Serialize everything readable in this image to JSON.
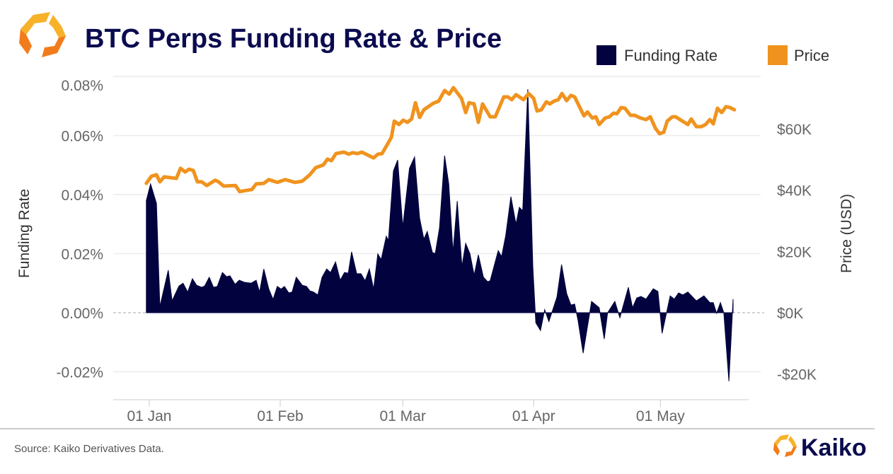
{
  "header": {
    "title": "BTC Perps Funding Rate & Price"
  },
  "footer": {
    "source": "Source: Kaiko Derivatives Data.",
    "brand": "Kaiko"
  },
  "colors": {
    "funding": "#02023f",
    "price": "#f0931e",
    "title": "#0b0b4f"
  },
  "chart_data": {
    "type": "area+line",
    "title": "BTC Perps Funding Rate & Price",
    "x_unit": "days since 31 Dec",
    "x_ticks": [
      {
        "label": "01 Jan",
        "day": 1
      },
      {
        "label": "01 Feb",
        "day": 32
      },
      {
        "label": "01 Mar",
        "day": 61
      },
      {
        "label": "01 Apr",
        "day": 92
      },
      {
        "label": "01 May",
        "day": 122
      }
    ],
    "y_left": {
      "label": "Funding Rate",
      "range": [
        -0.02,
        0.08
      ],
      "ticks": [
        {
          "label": "0.08%",
          "value": 0.08
        },
        {
          "label": "0.06%",
          "value": 0.06
        },
        {
          "label": "0.04%",
          "value": 0.04
        },
        {
          "label": "0.02%",
          "value": 0.02
        },
        {
          "label": "0.00%",
          "value": 0
        },
        {
          "label": "-0.02%",
          "value": -0.02
        }
      ]
    },
    "y_right": {
      "label": "Price (USD)",
      "unit": "thousand USD",
      "ticks": [
        {
          "label": "$60K",
          "value": 60
        },
        {
          "label": "$40K",
          "value": 40
        },
        {
          "label": "$20K",
          "value": 20
        },
        {
          "label": "$0K",
          "value": 0
        },
        {
          "label": "-$20K",
          "value": -20
        }
      ]
    },
    "legend": {
      "position": "top-right",
      "items": [
        {
          "label": "Funding Rate",
          "type": "area"
        },
        {
          "label": "Price",
          "type": "line"
        }
      ]
    },
    "grid": true,
    "series": [
      {
        "name": "Funding Rate",
        "axis": "left",
        "points": [
          [
            0.3,
            0.038
          ],
          [
            1.3,
            0.0436
          ],
          [
            2.7,
            0.037
          ],
          [
            3.5,
            0.002
          ],
          [
            5.5,
            0.0144
          ],
          [
            6.4,
            0.004
          ],
          [
            8.0,
            0.009
          ],
          [
            9.0,
            0.01
          ],
          [
            10.1,
            0.007
          ],
          [
            11.2,
            0.0115
          ],
          [
            12.2,
            0.0093
          ],
          [
            13.4,
            0.0086
          ],
          [
            14.1,
            0.009
          ],
          [
            15.2,
            0.012
          ],
          [
            16.2,
            0.0086
          ],
          [
            17.1,
            0.0089
          ],
          [
            18.3,
            0.0136
          ],
          [
            19.3,
            0.0122
          ],
          [
            20.1,
            0.0125
          ],
          [
            21.3,
            0.0096
          ],
          [
            22.3,
            0.011
          ],
          [
            23.5,
            0.0103
          ],
          [
            25.1,
            0.01
          ],
          [
            26.3,
            0.011
          ],
          [
            27.1,
            0.007
          ],
          [
            28.1,
            0.0148
          ],
          [
            29.3,
            0.008
          ],
          [
            30.3,
            0.0045
          ],
          [
            31.3,
            0.0089
          ],
          [
            32.2,
            0.008
          ],
          [
            33.0,
            0.0089
          ],
          [
            34.0,
            0.0067
          ],
          [
            34.8,
            0.007
          ],
          [
            35.8,
            0.012
          ],
          [
            37.2,
            0.0093
          ],
          [
            38.2,
            0.0089
          ],
          [
            39.0,
            0.0074
          ],
          [
            39.9,
            0.007
          ],
          [
            40.9,
            0.006
          ],
          [
            41.9,
            0.012
          ],
          [
            43.0,
            0.0148
          ],
          [
            43.9,
            0.0136
          ],
          [
            45.1,
            0.0172
          ],
          [
            46.2,
            0.011
          ],
          [
            47.2,
            0.0136
          ],
          [
            48.1,
            0.0134
          ],
          [
            48.9,
            0.0206
          ],
          [
            50.1,
            0.0132
          ],
          [
            51.1,
            0.0132
          ],
          [
            52.1,
            0.0108
          ],
          [
            53.1,
            0.0148
          ],
          [
            54.1,
            0.008
          ],
          [
            55.1,
            0.0199
          ],
          [
            55.9,
            0.018
          ],
          [
            57.1,
            0.0259
          ],
          [
            57.6,
            0.0244
          ],
          [
            58.8,
            0.048
          ],
          [
            59.8,
            0.0517
          ],
          [
            61.0,
            0.029
          ],
          [
            62.6,
            0.0489
          ],
          [
            63.8,
            0.0527
          ],
          [
            65.0,
            0.032
          ],
          [
            66.0,
            0.0249
          ],
          [
            66.8,
            0.0275
          ],
          [
            68.0,
            0.0204
          ],
          [
            68.7,
            0.02
          ],
          [
            69.7,
            0.0287
          ],
          [
            70.9,
            0.0532
          ],
          [
            71.9,
            0.0436
          ],
          [
            72.9,
            0.0204
          ],
          [
            73.9,
            0.0378
          ],
          [
            75.0,
            0.0156
          ],
          [
            75.9,
            0.0235
          ],
          [
            76.9,
            0.02
          ],
          [
            77.9,
            0.0127
          ],
          [
            78.9,
            0.0196
          ],
          [
            80.1,
            0.012
          ],
          [
            81.1,
            0.0105
          ],
          [
            81.7,
            0.0108
          ],
          [
            83.6,
            0.021
          ],
          [
            84.4,
            0.019
          ],
          [
            85.4,
            0.0263
          ],
          [
            86.6,
            0.0393
          ],
          [
            87.8,
            0.03
          ],
          [
            88.6,
            0.0357
          ],
          [
            89.4,
            0.0345
          ],
          [
            90.6,
            0.0757
          ],
          [
            91.8,
            0.0156
          ],
          [
            92.5,
            -0.0034
          ],
          [
            93.6,
            -0.006
          ],
          [
            94.6,
            0.001
          ],
          [
            95.6,
            -0.003
          ],
          [
            97.5,
            0.0053
          ],
          [
            98.6,
            0.0163
          ],
          [
            99.8,
            0.0065
          ],
          [
            100.8,
            0.0026
          ],
          [
            101.7,
            0.0029
          ],
          [
            102.5,
            -0.0026
          ],
          [
            103.7,
            -0.0137
          ],
          [
            105.7,
            0.0038
          ],
          [
            107.5,
            0.0017
          ],
          [
            108.7,
            -0.0089
          ],
          [
            109.5,
            0
          ],
          [
            111.2,
            0.0038
          ],
          [
            112.4,
            -0.0017
          ],
          [
            114.4,
            0.0086
          ],
          [
            115.4,
            0.0017
          ],
          [
            116.4,
            0.005
          ],
          [
            117.4,
            0.0055
          ],
          [
            118.6,
            0.0046
          ],
          [
            120.3,
            0.0081
          ],
          [
            121.4,
            0.0072
          ],
          [
            122.4,
            -0.007
          ],
          [
            124.3,
            0.0057
          ],
          [
            125.3,
            0.0046
          ],
          [
            126.3,
            0.0067
          ],
          [
            127.3,
            0.006
          ],
          [
            128.5,
            0.007
          ],
          [
            130.5,
            0.004
          ],
          [
            132.3,
            0.0057
          ],
          [
            133.7,
            0.0034
          ],
          [
            134.5,
            0.0034
          ],
          [
            135.3,
            -0.0002
          ],
          [
            136.2,
            0.0034
          ],
          [
            137.0,
            0
          ],
          [
            138.2,
            -0.0232
          ],
          [
            139.2,
            0.0046
          ]
        ]
      },
      {
        "name": "Price",
        "axis": "right",
        "points": [
          [
            0.3,
            42.2
          ],
          [
            1.5,
            44.5
          ],
          [
            2.7,
            45.0
          ],
          [
            3.5,
            42.7
          ],
          [
            4.5,
            44.3
          ],
          [
            7.4,
            43.8
          ],
          [
            8.4,
            47.1
          ],
          [
            9.5,
            45.9
          ],
          [
            10.4,
            46.8
          ],
          [
            11.4,
            46.4
          ],
          [
            12.4,
            42.7
          ],
          [
            13.4,
            42.7
          ],
          [
            14.6,
            41.5
          ],
          [
            16.6,
            43.2
          ],
          [
            17.4,
            42.7
          ],
          [
            18.6,
            41.3
          ],
          [
            21.4,
            41.5
          ],
          [
            22.4,
            39.5
          ],
          [
            25.3,
            40.2
          ],
          [
            26.3,
            42.0
          ],
          [
            28.1,
            42.2
          ],
          [
            29.3,
            43.4
          ],
          [
            31.3,
            42.5
          ],
          [
            33.2,
            43.4
          ],
          [
            35.5,
            42.5
          ],
          [
            37.2,
            42.9
          ],
          [
            39.0,
            45.0
          ],
          [
            40.4,
            47.3
          ],
          [
            42.2,
            48.2
          ],
          [
            43.2,
            50.1
          ],
          [
            44.1,
            49.6
          ],
          [
            45.2,
            51.9
          ],
          [
            47.1,
            52.4
          ],
          [
            48.2,
            51.7
          ],
          [
            49.1,
            52.2
          ],
          [
            50.3,
            51.9
          ],
          [
            51.3,
            52.4
          ],
          [
            54.1,
            50.5
          ],
          [
            55.1,
            51.7
          ],
          [
            56.1,
            51.9
          ],
          [
            58.3,
            57.2
          ],
          [
            59.0,
            62.5
          ],
          [
            60.1,
            61.4
          ],
          [
            61.1,
            62.8
          ],
          [
            62.1,
            62.1
          ],
          [
            63.1,
            63.2
          ],
          [
            64.0,
            68.5
          ],
          [
            65.0,
            63.7
          ],
          [
            66.0,
            66.2
          ],
          [
            68.2,
            68.3
          ],
          [
            69.5,
            69.0
          ],
          [
            70.9,
            72.5
          ],
          [
            72.0,
            71.3
          ],
          [
            73.0,
            73.4
          ],
          [
            74.9,
            69.9
          ],
          [
            75.9,
            65.3
          ],
          [
            76.7,
            68.5
          ],
          [
            77.9,
            68.1
          ],
          [
            78.9,
            62.1
          ],
          [
            79.9,
            68.1
          ],
          [
            81.7,
            63.9
          ],
          [
            82.9,
            63.9
          ],
          [
            84.9,
            70.4
          ],
          [
            85.9,
            70.4
          ],
          [
            86.8,
            69.5
          ],
          [
            87.8,
            71.1
          ],
          [
            89.6,
            69.5
          ],
          [
            90.8,
            71.5
          ],
          [
            92.0,
            69.9
          ],
          [
            92.8,
            65.8
          ],
          [
            93.8,
            66.2
          ],
          [
            95.0,
            68.8
          ],
          [
            95.8,
            68.1
          ],
          [
            96.8,
            69.0
          ],
          [
            97.8,
            69.5
          ],
          [
            98.7,
            71.5
          ],
          [
            99.8,
            69.2
          ],
          [
            100.8,
            70.9
          ],
          [
            101.7,
            70.4
          ],
          [
            103.9,
            64.2
          ],
          [
            104.7,
            65.5
          ],
          [
            105.9,
            63.5
          ],
          [
            106.7,
            63.9
          ],
          [
            107.5,
            61.4
          ],
          [
            108.9,
            63.5
          ],
          [
            109.9,
            63.9
          ],
          [
            110.9,
            65.1
          ],
          [
            111.7,
            64.9
          ],
          [
            112.7,
            66.9
          ],
          [
            113.6,
            66.7
          ],
          [
            114.9,
            64.4
          ],
          [
            115.9,
            64.4
          ],
          [
            117.3,
            63.5
          ],
          [
            118.6,
            63.0
          ],
          [
            119.6,
            63.9
          ],
          [
            120.8,
            60.2
          ],
          [
            121.8,
            58.4
          ],
          [
            122.8,
            58.9
          ],
          [
            123.6,
            62.5
          ],
          [
            124.8,
            63.9
          ],
          [
            125.6,
            63.9
          ],
          [
            128.5,
            61.4
          ],
          [
            129.3,
            63.2
          ],
          [
            130.5,
            60.7
          ],
          [
            131.7,
            60.7
          ],
          [
            132.7,
            61.4
          ],
          [
            133.7,
            63.0
          ],
          [
            134.5,
            61.6
          ],
          [
            135.5,
            66.7
          ],
          [
            136.5,
            65.3
          ],
          [
            137.5,
            67.2
          ],
          [
            138.5,
            66.9
          ],
          [
            139.5,
            66.2
          ]
        ]
      }
    ]
  }
}
